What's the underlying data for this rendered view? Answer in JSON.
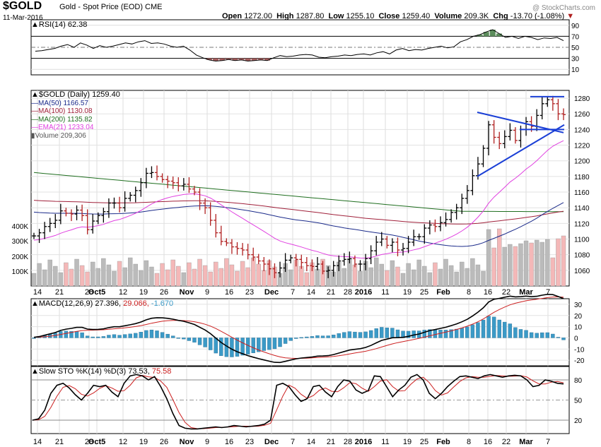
{
  "header": {
    "symbol": "$GOLD",
    "name": "Gold - Spot Price (EOD)  CME",
    "date": "11-Mar-2016",
    "watermark": "@ StockCharts.com",
    "open_label": "Open",
    "open": "1272.00",
    "high_label": "High",
    "high": "1287.80",
    "low_label": "Low",
    "low": "1255.10",
    "close_label": "Close",
    "close": "1259.40",
    "volume_label": "Volume",
    "volume": "209.3K",
    "chg_label": "Chg",
    "chg": "-13.70 (-1.08%)",
    "chg_arrow": "▼"
  },
  "chart_data": [
    {
      "type": "line",
      "panel": "rsi",
      "title": "RSI(14) 62.38",
      "ylim": [
        0,
        100
      ],
      "y_ticks": [
        "90",
        "70",
        "50",
        "30",
        "10"
      ],
      "overbought": 70,
      "oversold": 30,
      "values": [
        43,
        44,
        46,
        48,
        52,
        55,
        50,
        58,
        54,
        48,
        53,
        50,
        52,
        55,
        58,
        56,
        60,
        62,
        57,
        58,
        56,
        52,
        50,
        52,
        45,
        36,
        31,
        27,
        25,
        26,
        28,
        26,
        27,
        25,
        26,
        27,
        26,
        31,
        35,
        33,
        34,
        36,
        37,
        36,
        32,
        31,
        33,
        34,
        36,
        35,
        37,
        38,
        36,
        40,
        42,
        38,
        45,
        48,
        44,
        46,
        45,
        48,
        50,
        52,
        49,
        51,
        60,
        64,
        70,
        73,
        78,
        82,
        75,
        68,
        70,
        66,
        70,
        68,
        64,
        67,
        66,
        68,
        62
      ]
    },
    {
      "type": "ohlc",
      "panel": "price",
      "title": "$GOLD (Daily) 1259.40",
      "ylim": [
        1040,
        1290
      ],
      "y_ticks": [
        "1280",
        "1260",
        "1240",
        "1220",
        "1200",
        "1180",
        "1160",
        "1140",
        "1120",
        "1100",
        "1080",
        "1060"
      ],
      "x_ticks": [
        "14",
        "21",
        "28",
        "Oct5",
        "12",
        "19",
        "26",
        "Nov",
        "9",
        "16",
        "23",
        "Dec",
        "7",
        "14",
        "21",
        "28",
        "2016",
        "11",
        "19",
        "25",
        "Feb",
        "8",
        "16",
        "22",
        "Mar",
        "7"
      ],
      "legend": [
        {
          "label": "MA(50) 1166.57",
          "color": "#1a2a8a"
        },
        {
          "label": "MA(100) 1130.08",
          "color": "#a0203a"
        },
        {
          "label": "MA(200) 1135.82",
          "color": "#1f6e1f"
        },
        {
          "label": "EMA(21) 1233.04",
          "color": "#e040e0"
        },
        {
          "label": "Volume 209,306",
          "color": "#777777"
        }
      ],
      "volume_axis": [
        "400K",
        "300K",
        "200K",
        "100K"
      ],
      "closes": [
        1104,
        1108,
        1116,
        1120,
        1124,
        1136,
        1133,
        1132,
        1137,
        1130,
        1112,
        1123,
        1130,
        1135,
        1146,
        1146,
        1140,
        1152,
        1156,
        1162,
        1172,
        1184,
        1185,
        1180,
        1176,
        1174,
        1172,
        1168,
        1170,
        1164,
        1160,
        1146,
        1140,
        1124,
        1108,
        1097,
        1095,
        1090,
        1088,
        1086,
        1080,
        1077,
        1072,
        1068,
        1062,
        1057,
        1063,
        1073,
        1076,
        1074,
        1070,
        1066,
        1065,
        1068,
        1059,
        1060,
        1066,
        1072,
        1074,
        1075,
        1068,
        1068,
        1075,
        1085,
        1096,
        1100,
        1092,
        1096,
        1086,
        1088,
        1096,
        1103,
        1103,
        1114,
        1118,
        1116,
        1121,
        1125,
        1134,
        1140,
        1152,
        1162,
        1181,
        1196,
        1216,
        1246,
        1230,
        1222,
        1231,
        1239,
        1226,
        1240,
        1250,
        1244,
        1258,
        1273,
        1278,
        1273,
        1260,
        1259
      ],
      "ma50_end": "1166.57",
      "ma100_end": "1130.08",
      "ma200_end": "1135.82",
      "ema21_end": "1233.04"
    },
    {
      "type": "macd",
      "panel": "macd",
      "title": "MACD(12,26,9) 27.396, 29.066, -1.670",
      "ylim": [
        -25,
        35
      ],
      "y_ticks": [
        "30",
        "20",
        "10",
        "0",
        "-10",
        "-20"
      ]
    },
    {
      "type": "line",
      "panel": "stochastic",
      "title": "Slow STO %K(14) %D(3) 73.53, 75.58",
      "ylim": [
        0,
        100
      ],
      "y_ticks": [
        "80",
        "50",
        "20"
      ],
      "k_values": [
        20,
        22,
        35,
        60,
        72,
        75,
        68,
        58,
        50,
        60,
        72,
        70,
        72,
        62,
        55,
        75,
        86,
        88,
        86,
        80,
        85,
        70,
        52,
        30,
        12,
        8,
        7,
        7,
        8,
        9,
        10,
        9,
        10,
        12,
        11,
        10,
        11,
        12,
        14,
        20,
        72,
        75,
        70,
        58,
        48,
        52,
        70,
        72,
        62,
        55,
        70,
        80,
        78,
        65,
        60,
        64,
        86,
        85,
        70,
        55,
        65,
        72,
        84,
        88,
        80,
        60,
        52,
        60,
        70,
        78,
        85,
        86,
        84,
        82,
        86,
        88,
        86,
        84,
        86,
        87,
        86,
        80,
        70,
        72,
        80,
        78,
        75,
        74
      ]
    }
  ],
  "legend_text": {
    "rsi": "RSI(14) 62.38",
    "price": "$GOLD (Daily) 1259.40",
    "ma50": "MA(50) 1166.57",
    "ma100": "MA(100) 1130.08",
    "ma200": "MA(200) 1135.82",
    "ema21": "EMA(21) 1233.04",
    "volume": "Volume 209,306",
    "macd_name": "MACD(12,26,9)",
    "macd_v1": "27.396,",
    "macd_v2": "29.066,",
    "macd_v3": "-1.670",
    "sto_name": "Slow STO %K(14) %D(3)",
    "sto_v1": "73.53,",
    "sto_v2": "75.58"
  },
  "colors": {
    "ma50": "#1a2a8a",
    "ma100": "#a0203a",
    "ma200": "#1f6e1f",
    "ema21": "#e040e0",
    "volume_up": "#bbbbbb",
    "volume_down": "#f4b8b8",
    "rsi_overbought_fill": "#5c8d5c",
    "rsi_oversold_fill": "#a86060",
    "macd_hist": "#3b9ac7",
    "trendline": "#1a3fd6",
    "sto_k": "#000000",
    "sto_d": "#cc2020",
    "macd_line": "#000000",
    "macd_signal": "#cc2020"
  }
}
